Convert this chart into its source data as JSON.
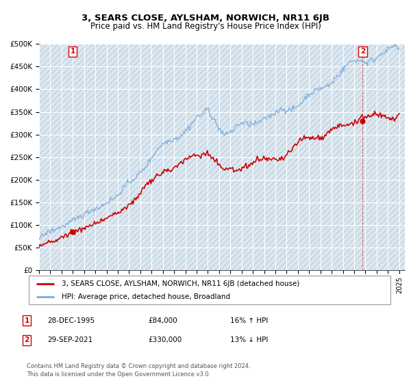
{
  "title": "3, SEARS CLOSE, AYLSHAM, NORWICH, NR11 6JB",
  "subtitle": "Price paid vs. HM Land Registry's House Price Index (HPI)",
  "ylim": [
    0,
    500000
  ],
  "yticks": [
    0,
    50000,
    100000,
    150000,
    200000,
    250000,
    300000,
    350000,
    400000,
    450000,
    500000
  ],
  "ytick_labels": [
    "£0",
    "£50K",
    "£100K",
    "£150K",
    "£200K",
    "£250K",
    "£300K",
    "£350K",
    "£400K",
    "£450K",
    "£500K"
  ],
  "xlim_start": 1993.0,
  "xlim_end": 2025.5,
  "xticks": [
    1993,
    1994,
    1995,
    1996,
    1997,
    1998,
    1999,
    2000,
    2001,
    2002,
    2003,
    2004,
    2005,
    2006,
    2007,
    2008,
    2009,
    2010,
    2011,
    2012,
    2013,
    2014,
    2015,
    2016,
    2017,
    2018,
    2019,
    2020,
    2021,
    2022,
    2023,
    2024,
    2025
  ],
  "sale1_x": 1995.99,
  "sale1_y": 84000,
  "sale2_x": 2021.75,
  "sale2_y": 330000,
  "legend_line1": "3, SEARS CLOSE, AYLSHAM, NORWICH, NR11 6JB (detached house)",
  "legend_line2": "HPI: Average price, detached house, Broadland",
  "table_row1": [
    "1",
    "28-DEC-1995",
    "£84,000",
    "16% ↑ HPI"
  ],
  "table_row2": [
    "2",
    "29-SEP-2021",
    "£330,000",
    "13% ↓ HPI"
  ],
  "footer": "Contains HM Land Registry data © Crown copyright and database right 2024.\nThis data is licensed under the Open Government Licence v3.0.",
  "hpi_color": "#7aaadd",
  "price_color": "#cc0000",
  "bg_color": "#dce8f0",
  "hatch_color": "#c0d0e0",
  "grid_color": "#ffffff",
  "ann_color": "#cc0000",
  "fig_bg": "#ffffff"
}
